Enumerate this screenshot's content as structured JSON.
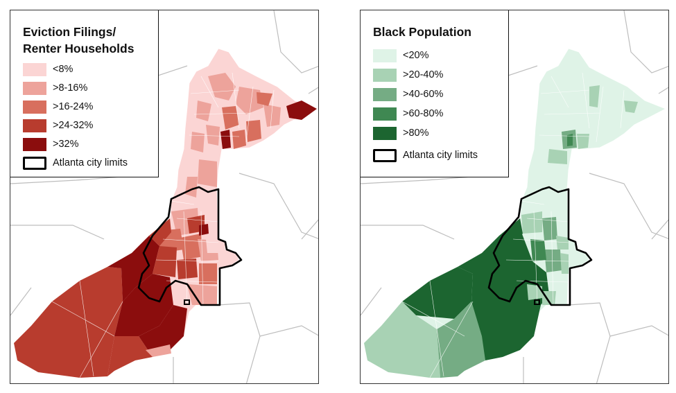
{
  "left_map": {
    "title_line1": "Eviction Filings/",
    "title_line2": "Renter Households",
    "legend": [
      {
        "label": "<8%",
        "color": "#fbd5d4"
      },
      {
        "label": ">8-16%",
        "color": "#eda39b"
      },
      {
        "label": ">16-24%",
        "color": "#d86f5e"
      },
      {
        "label": ">24-32%",
        "color": "#b83c2e"
      },
      {
        "label": ">32%",
        "color": "#8b0d0d"
      }
    ],
    "boundary_label": "Atlanta city limits"
  },
  "right_map": {
    "title": "Black Population",
    "legend": [
      {
        "label": "<20%",
        "color": "#dff3e7"
      },
      {
        "label": ">20-40%",
        "color": "#a8d2b4"
      },
      {
        "label": ">40-60%",
        "color": "#75ac84"
      },
      {
        "label": ">60-80%",
        "color": "#3f8852"
      },
      {
        "label": ">80%",
        "color": "#1c6530"
      }
    ],
    "boundary_label": "Atlanta city limits"
  }
}
